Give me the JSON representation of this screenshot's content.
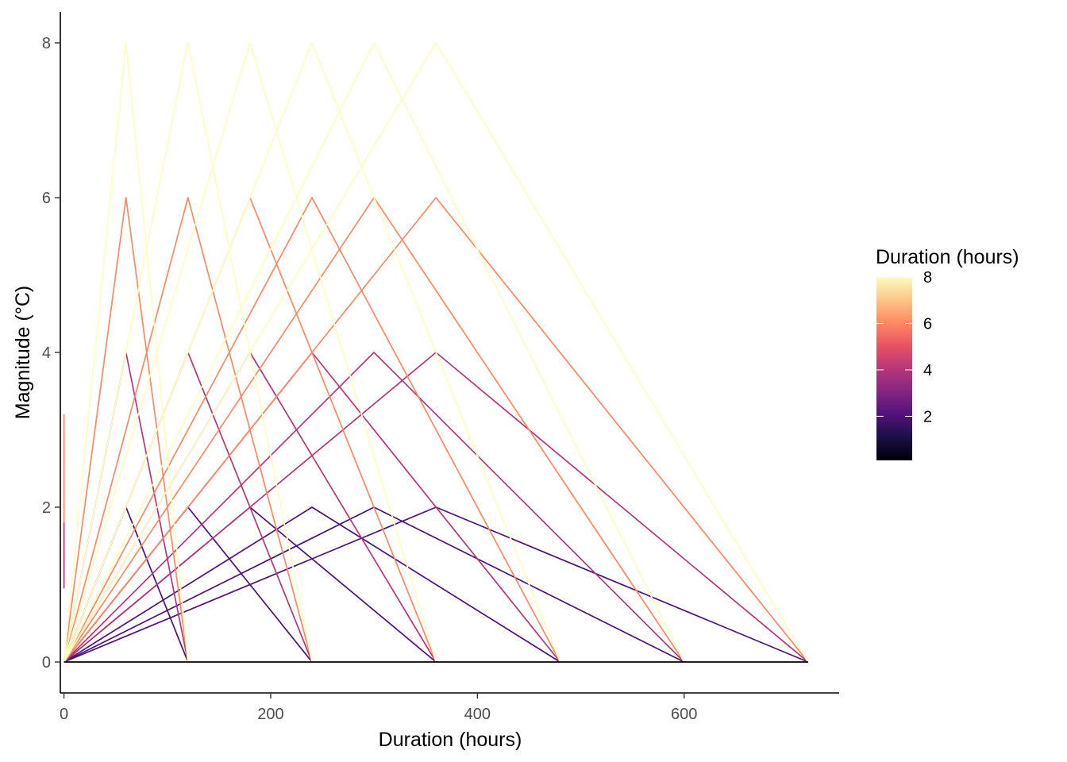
{
  "chart_data": {
    "type": "line",
    "title": "",
    "xlabel": "Duration (hours)",
    "ylabel": "Magnitude (°C)",
    "xlim": [
      -3.5,
      750
    ],
    "ylim": [
      -0.4,
      8.4
    ],
    "x_ticks": [
      0,
      200,
      400,
      600
    ],
    "y_ticks": [
      0,
      2,
      4,
      6,
      8
    ],
    "grid": false,
    "legend": {
      "title": "Duration (hours)",
      "type": "colorbar",
      "position": "right",
      "range": [
        0.1,
        8
      ],
      "ticks": [
        2,
        4,
        6,
        8
      ],
      "palette": [
        "#000004",
        "#1c1044",
        "#51127c",
        "#832681",
        "#b73779",
        "#e75263",
        "#fc8961",
        "#fec488",
        "#fcfdbf"
      ]
    },
    "series": [
      {
        "values": [
          [
            0,
            0
          ],
          [
            60,
            2
          ],
          [
            120,
            0
          ]
        ],
        "color_value": 2
      },
      {
        "values": [
          [
            0,
            0
          ],
          [
            120,
            2
          ],
          [
            240,
            0
          ]
        ],
        "color_value": 2
      },
      {
        "values": [
          [
            0,
            0
          ],
          [
            180,
            2
          ],
          [
            360,
            0
          ]
        ],
        "color_value": 2
      },
      {
        "values": [
          [
            0,
            0
          ],
          [
            240,
            2
          ],
          [
            480,
            0
          ]
        ],
        "color_value": 2
      },
      {
        "values": [
          [
            0,
            0
          ],
          [
            300,
            2
          ],
          [
            600,
            0
          ]
        ],
        "color_value": 2
      },
      {
        "values": [
          [
            0,
            0
          ],
          [
            360,
            2
          ],
          [
            720,
            0
          ]
        ],
        "color_value": 2
      },
      {
        "values": [
          [
            0,
            0
          ],
          [
            60,
            4
          ],
          [
            120,
            0
          ]
        ],
        "color_value": 4
      },
      {
        "values": [
          [
            0,
            0
          ],
          [
            120,
            4
          ],
          [
            240,
            0
          ]
        ],
        "color_value": 4
      },
      {
        "values": [
          [
            0,
            0
          ],
          [
            180,
            4
          ],
          [
            360,
            0
          ]
        ],
        "color_value": 4
      },
      {
        "values": [
          [
            0,
            0
          ],
          [
            240,
            4
          ],
          [
            480,
            0
          ]
        ],
        "color_value": 4
      },
      {
        "values": [
          [
            0,
            0
          ],
          [
            300,
            4
          ],
          [
            600,
            0
          ]
        ],
        "color_value": 4
      },
      {
        "values": [
          [
            0,
            0
          ],
          [
            360,
            4
          ],
          [
            720,
            0
          ]
        ],
        "color_value": 4
      },
      {
        "values": [
          [
            0,
            0
          ],
          [
            60,
            6
          ],
          [
            120,
            0
          ]
        ],
        "color_value": 6
      },
      {
        "values": [
          [
            0,
            0
          ],
          [
            120,
            6
          ],
          [
            240,
            0
          ]
        ],
        "color_value": 6
      },
      {
        "values": [
          [
            0,
            0
          ],
          [
            180,
            6
          ],
          [
            360,
            0
          ]
        ],
        "color_value": 6
      },
      {
        "values": [
          [
            0,
            0
          ],
          [
            240,
            6
          ],
          [
            480,
            0
          ]
        ],
        "color_value": 6
      },
      {
        "values": [
          [
            0,
            0
          ],
          [
            300,
            6
          ],
          [
            600,
            0
          ]
        ],
        "color_value": 6
      },
      {
        "values": [
          [
            0,
            0
          ],
          [
            360,
            6
          ],
          [
            720,
            0
          ]
        ],
        "color_value": 6
      },
      {
        "values": [
          [
            0,
            0
          ],
          [
            60,
            8
          ],
          [
            120,
            0
          ]
        ],
        "color_value": 8
      },
      {
        "values": [
          [
            0,
            0
          ],
          [
            120,
            8
          ],
          [
            240,
            0
          ]
        ],
        "color_value": 8
      },
      {
        "values": [
          [
            0,
            0
          ],
          [
            180,
            8
          ],
          [
            360,
            0
          ]
        ],
        "color_value": 8
      },
      {
        "values": [
          [
            0,
            0
          ],
          [
            240,
            8
          ],
          [
            480,
            0
          ]
        ],
        "color_value": 8
      },
      {
        "values": [
          [
            0,
            0
          ],
          [
            300,
            8
          ],
          [
            600,
            0
          ]
        ],
        "color_value": 8
      },
      {
        "values": [
          [
            0,
            0
          ],
          [
            360,
            8
          ],
          [
            720,
            0
          ]
        ],
        "color_value": 8
      },
      {
        "values": [
          [
            0,
            0.95
          ],
          [
            0,
            1.8
          ]
        ],
        "color_value": 4
      },
      {
        "values": [
          [
            0,
            1.8
          ],
          [
            0,
            3.2
          ]
        ],
        "color_value": 6
      },
      {
        "values": [
          [
            0,
            0
          ],
          [
            720,
            0
          ]
        ],
        "color_value": 0.1
      }
    ]
  }
}
